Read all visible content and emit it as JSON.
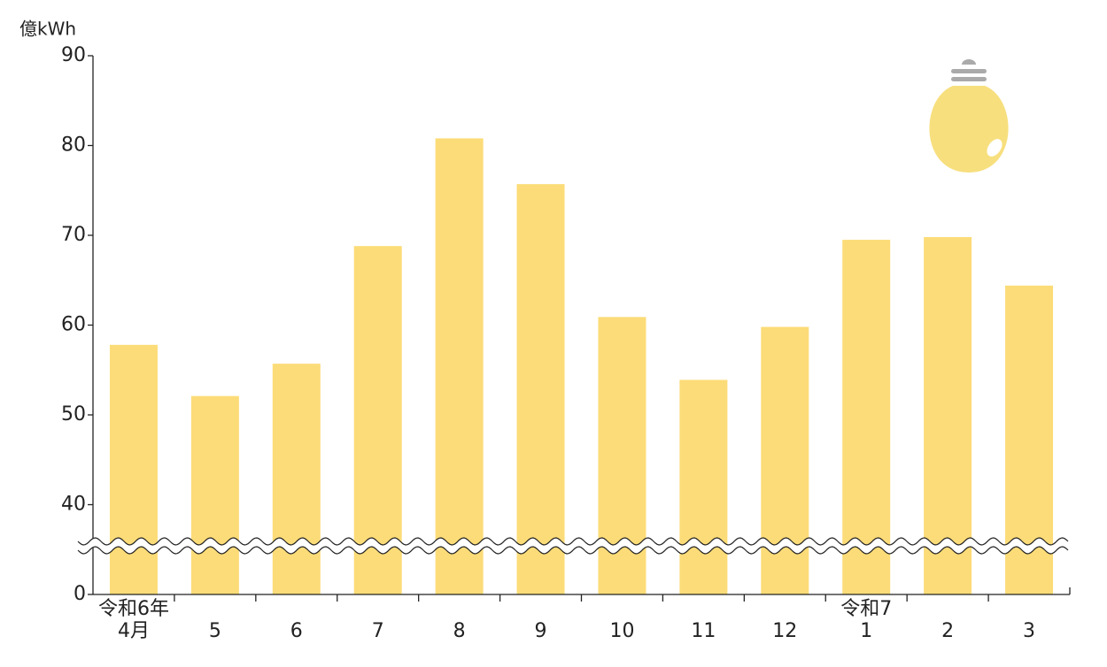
{
  "chart_data": {
    "type": "bar",
    "y_label": "億kWh",
    "categories": [
      "4月",
      "5",
      "6",
      "7",
      "8",
      "9",
      "10",
      "11",
      "12",
      "1",
      "2",
      "3"
    ],
    "category_groups": [
      {
        "label": "令和6年",
        "start": 0
      },
      {
        "label": "令和7",
        "start": 9
      }
    ],
    "values": [
      57.8,
      52.1,
      55.7,
      68.8,
      80.8,
      75.7,
      60.9,
      53.9,
      59.8,
      69.5,
      69.8,
      64.4
    ],
    "color": "#fcdc78",
    "ylim": [
      0,
      90
    ],
    "yticks": [
      0,
      40,
      50,
      60,
      70,
      80,
      90
    ],
    "axis_break": true
  }
}
